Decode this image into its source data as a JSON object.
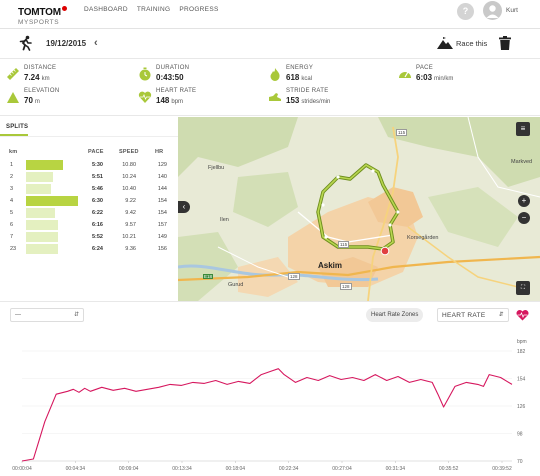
{
  "nav": {
    "logo_main": "TOMTOM",
    "logo_sub": "MYSPORTS",
    "links": [
      "DASHBOARD",
      "TRAINING",
      "PROGRESS"
    ],
    "help_label": "?",
    "user_name": "Kurt"
  },
  "activity": {
    "date": "19/12/2015",
    "race_label": "Race this"
  },
  "stats": {
    "distance": {
      "label": "DISTANCE",
      "value": "7.24",
      "unit": "km"
    },
    "elevation": {
      "label": "ELEVATION",
      "value": "70",
      "unit": "m"
    },
    "duration": {
      "label": "DURATION",
      "value": "0:43:50",
      "unit": ""
    },
    "heart_rate": {
      "label": "HEART RATE",
      "value": "148",
      "unit": "bpm"
    },
    "energy": {
      "label": "ENERGY",
      "value": "618",
      "unit": "kcal"
    },
    "stride_rate": {
      "label": "STRIDE RATE",
      "value": "153",
      "unit": "strides/min"
    },
    "pace": {
      "label": "PACE",
      "value": "6:03",
      "unit": "min/km"
    }
  },
  "splits": {
    "title": "SPLITS",
    "headers": {
      "km": "km",
      "pace": "PACE",
      "speed": "SPEED",
      "hr": "HR"
    },
    "rows": [
      {
        "km": "1",
        "pace": "5:30",
        "speed": "10.80",
        "hr": "129",
        "pace_fraction": 0.72,
        "best": true
      },
      {
        "km": "2",
        "pace": "5:51",
        "speed": "10.24",
        "hr": "140",
        "pace_fraction": 0.52,
        "best": false
      },
      {
        "km": "3",
        "pace": "5:46",
        "speed": "10.40",
        "hr": "144",
        "pace_fraction": 0.48,
        "best": false
      },
      {
        "km": "4",
        "pace": "6:30",
        "speed": "9.22",
        "hr": "154",
        "pace_fraction": 1.0,
        "best": true
      },
      {
        "km": "5",
        "pace": "6:22",
        "speed": "9.42",
        "hr": "154",
        "pace_fraction": 0.56,
        "best": false
      },
      {
        "km": "6",
        "pace": "6:16",
        "speed": "9.57",
        "hr": "157",
        "pace_fraction": 0.62,
        "best": false
      },
      {
        "km": "7",
        "pace": "5:52",
        "speed": "10.21",
        "hr": "149",
        "pace_fraction": 0.62,
        "best": false
      },
      {
        "km": "23",
        "pace": "6:24",
        "speed": "9.36",
        "hr": "156",
        "pace_fraction": 0.62,
        "best": false
      }
    ]
  },
  "map": {
    "labels": {
      "askim": "Askim",
      "fjellbu": "Fjellbu",
      "ilen": "Ilen",
      "gurud": "Gurud",
      "korsegarden": "Korsegården",
      "markved": "Markved",
      "road_115a": "115",
      "road_115b": "115",
      "road_128a": "128",
      "road_128b": "128",
      "road_e18": "E18"
    },
    "controls": {
      "menu": "≡",
      "collapse": "‹",
      "zoom_in": "+",
      "zoom_out": "−",
      "fullscreen": "⛶"
    }
  },
  "chart_controls": {
    "left_select": "---",
    "zones_button": "Heart Rate Zones",
    "metric_select": "HEART RATE"
  },
  "chart_data": {
    "type": "line",
    "ylabel": "bpm",
    "yticks": [
      182,
      154,
      126,
      98,
      70
    ],
    "ylim": [
      70,
      182
    ],
    "xticks": [
      "00:00:04",
      "00:04:34",
      "00:09:04",
      "00:13:34",
      "00:18:04",
      "00:22:34",
      "00:27:04",
      "00:31:34",
      "00:35:52",
      "00:39:52"
    ],
    "series": [
      {
        "color": "#d6175e",
        "x": [
          0,
          1,
          2,
          3,
          4,
          4.5,
          5,
          5.5,
          6,
          7,
          8,
          9,
          10,
          11,
          12,
          13,
          14,
          15,
          16,
          17,
          18,
          19,
          20,
          21,
          22,
          22.5,
          23,
          24,
          25,
          26,
          27,
          28,
          29,
          30,
          31,
          32,
          33,
          34,
          35,
          36,
          36.5,
          37,
          38,
          39,
          40,
          40.5,
          41,
          42,
          43
        ],
        "y": [
          70,
          72,
          110,
          138,
          141,
          143,
          140,
          144,
          141,
          145,
          142,
          144,
          141,
          143,
          145,
          148,
          147,
          150,
          149,
          152,
          148,
          151,
          149,
          158,
          162,
          164,
          158,
          150,
          155,
          152,
          157,
          153,
          155,
          152,
          158,
          152,
          156,
          150,
          153,
          150,
          138,
          125,
          146,
          150,
          148,
          146,
          158,
          155,
          148
        ]
      }
    ]
  }
}
